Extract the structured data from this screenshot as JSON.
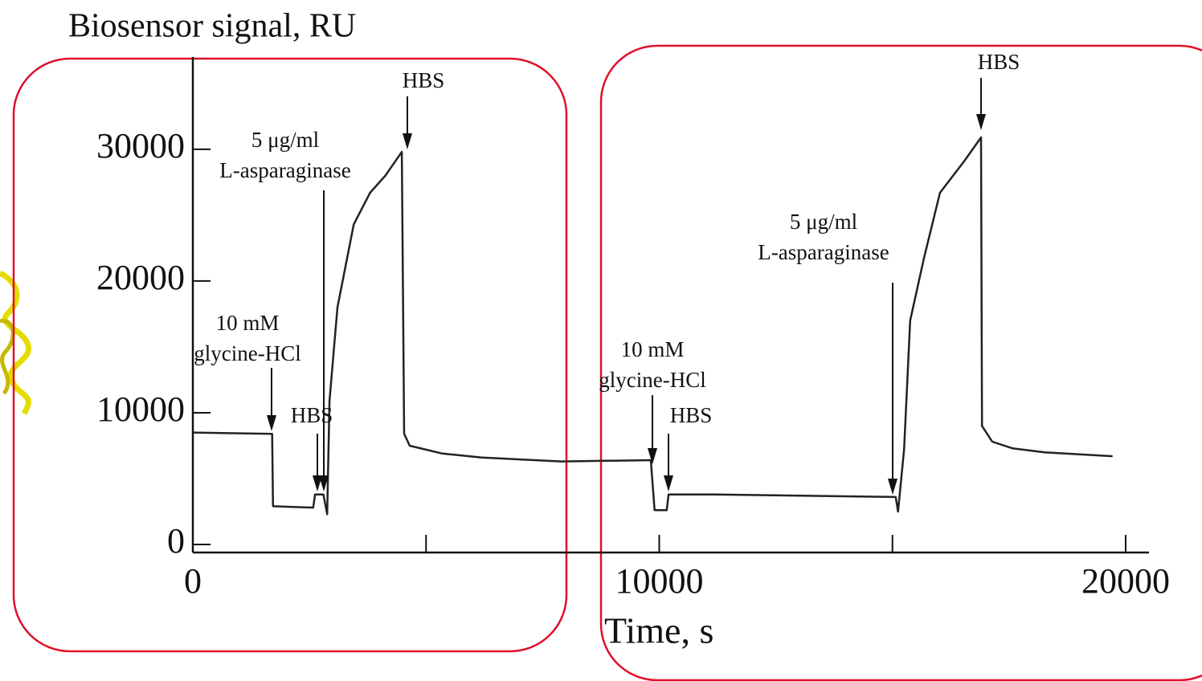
{
  "chart_data": {
    "type": "line",
    "ylabel": "Biosensor signal, RU",
    "xlabel": "Time, s",
    "x": [
      0,
      1700,
      1720,
      2580,
      2620,
      2800,
      2880,
      2930,
      3100,
      3450,
      3800,
      4130,
      4480,
      4530,
      4650,
      5350,
      6200,
      7900,
      9820,
      9900,
      10160,
      10200,
      11130,
      15070,
      15120,
      15250,
      15380,
      15680,
      16020,
      16540,
      16900,
      16920,
      17140,
      17570,
      18260,
      19720
    ],
    "values": [
      8500,
      8400,
      2900,
      2800,
      3800,
      3800,
      2300,
      10900,
      18000,
      24300,
      26700,
      28000,
      29800,
      8400,
      7500,
      6900,
      6600,
      6300,
      6400,
      2600,
      2600,
      3800,
      3800,
      3600,
      2500,
      7200,
      17000,
      21800,
      26700,
      29100,
      30900,
      9000,
      7800,
      7300,
      7000,
      6700
    ],
    "color": "#222222",
    "xlim": [
      0,
      20500
    ],
    "ylim": [
      0,
      37000
    ],
    "xticks": [
      0,
      10000,
      20000
    ],
    "xticks_minor": [
      5000,
      15000
    ],
    "yticks": [
      0,
      10000,
      20000,
      30000
    ],
    "annotations": [
      {
        "lines": [
          "10 mM",
          "glycine-HCl"
        ]
      },
      {
        "lines": [
          "HBS"
        ]
      },
      {
        "lines": [
          "5 μg/ml",
          "L-asparaginase"
        ]
      },
      {
        "lines": [
          "HBS"
        ]
      },
      {
        "lines": [
          "10 mM",
          "glycine-HCl"
        ]
      },
      {
        "lines": [
          "HBS"
        ]
      },
      {
        "lines": [
          "5 μg/ml",
          "L-asparaginase"
        ]
      },
      {
        "lines": [
          "HBS"
        ]
      }
    ]
  }
}
